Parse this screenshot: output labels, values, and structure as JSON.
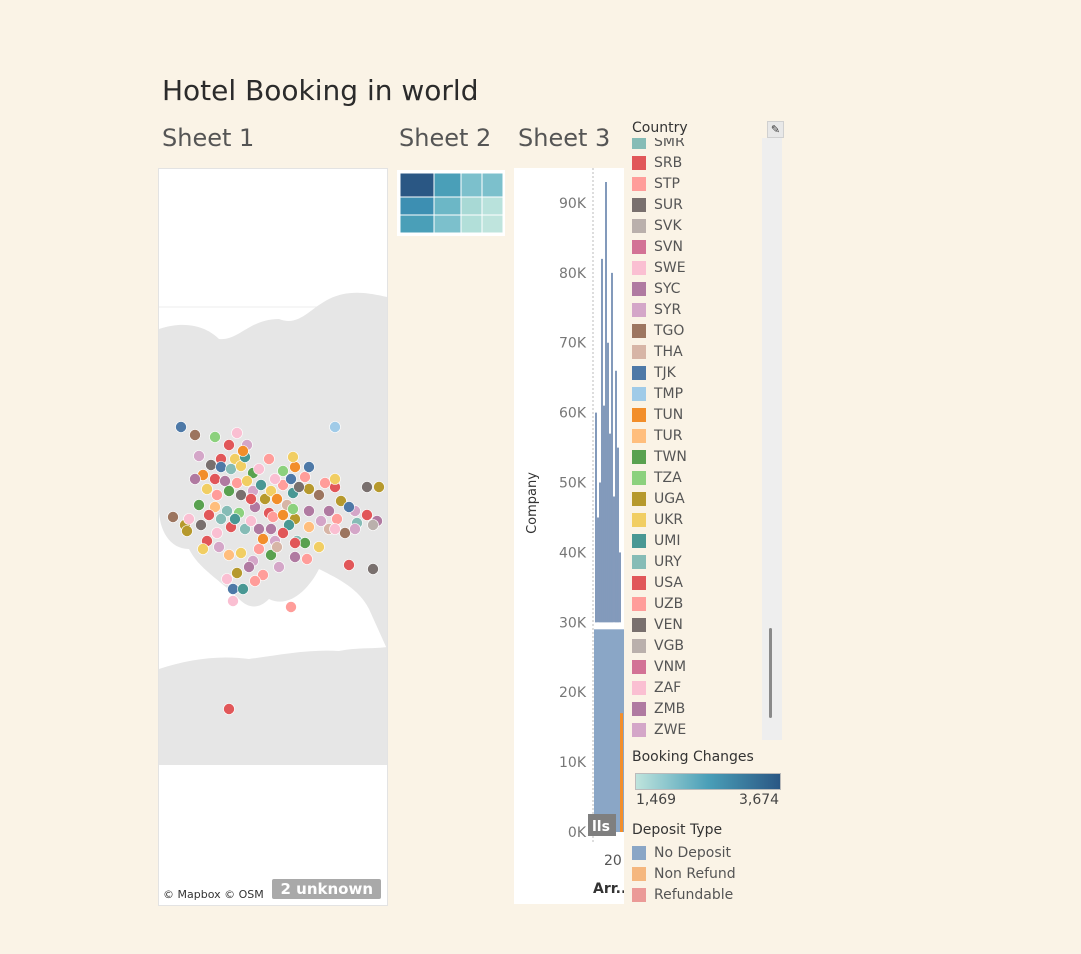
{
  "dashboard": {
    "title": "Hotel Booking in world"
  },
  "sheets": [
    {
      "title": "Sheet 1"
    },
    {
      "title": "Sheet 2"
    },
    {
      "title": "Sheet 3"
    }
  ],
  "map": {
    "attribution": "© Mapbox © OSM",
    "unknown_badge": "2 unknown",
    "land_color": "#e8e8e8",
    "points": [
      [
        22,
        258,
        "#4e79a7"
      ],
      [
        36,
        266,
        "#9c755f"
      ],
      [
        56,
        268,
        "#8cd17d"
      ],
      [
        78,
        264,
        "#fabfd2"
      ],
      [
        70,
        276,
        "#e15759"
      ],
      [
        76,
        290,
        "#f1ce63"
      ],
      [
        62,
        290,
        "#e15759"
      ],
      [
        40,
        287,
        "#d4a6c8"
      ],
      [
        52,
        296,
        "#79706e"
      ],
      [
        62,
        298,
        "#4e79a7"
      ],
      [
        72,
        300,
        "#86bcb6"
      ],
      [
        82,
        297,
        "#f1ce63"
      ],
      [
        86,
        288,
        "#499894"
      ],
      [
        94,
        304,
        "#59a14f"
      ],
      [
        44,
        306,
        "#f28e2b"
      ],
      [
        56,
        310,
        "#e15759"
      ],
      [
        66,
        312,
        "#b07aa1"
      ],
      [
        78,
        314,
        "#ff9d9a"
      ],
      [
        88,
        312,
        "#f1ce63"
      ],
      [
        100,
        300,
        "#fabfd2"
      ],
      [
        36,
        310,
        "#b07aa1"
      ],
      [
        48,
        320,
        "#f1ce63"
      ],
      [
        58,
        326,
        "#ff9d9a"
      ],
      [
        70,
        322,
        "#59a14f"
      ],
      [
        82,
        326,
        "#79706e"
      ],
      [
        94,
        322,
        "#d4a6c8"
      ],
      [
        106,
        330,
        "#b6992d"
      ],
      [
        40,
        336,
        "#59a14f"
      ],
      [
        56,
        338,
        "#ffbe7d"
      ],
      [
        68,
        342,
        "#86bcb6"
      ],
      [
        80,
        344,
        "#8cd17d"
      ],
      [
        96,
        338,
        "#b07aa1"
      ],
      [
        112,
        322,
        "#f1ce63"
      ],
      [
        124,
        316,
        "#ff9d9a"
      ],
      [
        134,
        324,
        "#499894"
      ],
      [
        132,
        310,
        "#4e79a7"
      ],
      [
        118,
        330,
        "#f28e2b"
      ],
      [
        110,
        344,
        "#e15759"
      ],
      [
        128,
        336,
        "#d7b5a6"
      ],
      [
        146,
        308,
        "#ff9d9a"
      ],
      [
        150,
        320,
        "#b6992d"
      ],
      [
        136,
        350,
        "#b6992d"
      ],
      [
        160,
        326,
        "#9c755f"
      ],
      [
        182,
        332,
        "#b6992d"
      ],
      [
        170,
        342,
        "#b07aa1"
      ],
      [
        196,
        342,
        "#d4a6c8"
      ],
      [
        208,
        346,
        "#e15759"
      ],
      [
        218,
        352,
        "#b07aa1"
      ],
      [
        150,
        342,
        "#b07aa1"
      ],
      [
        162,
        352,
        "#d4a6c8"
      ],
      [
        170,
        360,
        "#d7b5a6"
      ],
      [
        178,
        350,
        "#ff9d9a"
      ],
      [
        186,
        364,
        "#9c755f"
      ],
      [
        198,
        354,
        "#86bcb6"
      ],
      [
        190,
        338,
        "#4e79a7"
      ],
      [
        176,
        318,
        "#e15759"
      ],
      [
        166,
        314,
        "#ff9d9a"
      ],
      [
        136,
        298,
        "#f28e2b"
      ],
      [
        134,
        340,
        "#8cd17d"
      ],
      [
        130,
        356,
        "#499894"
      ],
      [
        114,
        348,
        "#ff9d9a"
      ],
      [
        100,
        360,
        "#b07aa1"
      ],
      [
        86,
        360,
        "#86bcb6"
      ],
      [
        72,
        358,
        "#e15759"
      ],
      [
        58,
        364,
        "#fabfd2"
      ],
      [
        48,
        372,
        "#e15759"
      ],
      [
        60,
        378,
        "#d4a6c8"
      ],
      [
        70,
        386,
        "#ffbe7d"
      ],
      [
        82,
        384,
        "#f1ce63"
      ],
      [
        94,
        392,
        "#d4a6c8"
      ],
      [
        100,
        380,
        "#ff9d9a"
      ],
      [
        112,
        386,
        "#59a14f"
      ],
      [
        120,
        398,
        "#d4a6c8"
      ],
      [
        104,
        406,
        "#ff9d9a"
      ],
      [
        90,
        398,
        "#b07aa1"
      ],
      [
        78,
        404,
        "#b6992d"
      ],
      [
        68,
        410,
        "#fabfd2"
      ],
      [
        74,
        420,
        "#4e79a7"
      ],
      [
        84,
        420,
        "#499894"
      ],
      [
        96,
        412,
        "#ff9d9a"
      ],
      [
        112,
        360,
        "#b07aa1"
      ],
      [
        124,
        364,
        "#e15759"
      ],
      [
        138,
        372,
        "#86bcb6"
      ],
      [
        146,
        374,
        "#59a14f"
      ],
      [
        116,
        372,
        "#d4a6c8"
      ],
      [
        26,
        356,
        "#b6992d"
      ],
      [
        30,
        350,
        "#fabfd2"
      ],
      [
        28,
        362,
        "#b6992d"
      ],
      [
        42,
        356,
        "#79706e"
      ],
      [
        44,
        380,
        "#f1ce63"
      ],
      [
        14,
        348,
        "#9c755f"
      ],
      [
        50,
        346,
        "#e15759"
      ],
      [
        62,
        350,
        "#86bcb6"
      ],
      [
        76,
        350,
        "#499894"
      ],
      [
        92,
        352,
        "#fabfd2"
      ],
      [
        148,
        390,
        "#ff9d9a"
      ],
      [
        136,
        388,
        "#b07aa1"
      ],
      [
        104,
        370,
        "#f28e2b"
      ],
      [
        118,
        378,
        "#d7b5a6"
      ],
      [
        160,
        378,
        "#f1ce63"
      ],
      [
        176,
        360,
        "#fabfd2"
      ],
      [
        196,
        360,
        "#d4a6c8"
      ],
      [
        176,
        310,
        "#f1ce63"
      ],
      [
        150,
        298,
        "#4e79a7"
      ],
      [
        134,
        288,
        "#f1ce63"
      ],
      [
        176,
        258,
        "#a0cbe8"
      ],
      [
        208,
        318,
        "#79706e"
      ],
      [
        220,
        318,
        "#b6992d"
      ],
      [
        190,
        396,
        "#e15759"
      ],
      [
        136,
        374,
        "#e15759"
      ],
      [
        74,
        432,
        "#fabfd2"
      ],
      [
        132,
        438,
        "#ff9d9a"
      ],
      [
        214,
        400,
        "#79706e"
      ],
      [
        214,
        356,
        "#bab0ac"
      ],
      [
        70,
        540,
        "#e15759"
      ],
      [
        88,
        276,
        "#d4a6c8"
      ],
      [
        84,
        282,
        "#f28e2b"
      ],
      [
        110,
        290,
        "#ff9d9a"
      ],
      [
        116,
        310,
        "#fabfd2"
      ],
      [
        124,
        302,
        "#8cd17d"
      ],
      [
        102,
        316,
        "#499894"
      ],
      [
        92,
        330,
        "#e15759"
      ],
      [
        140,
        318,
        "#79706e"
      ],
      [
        124,
        346,
        "#f28e2b"
      ],
      [
        150,
        358,
        "#ffbe7d"
      ]
    ]
  },
  "heatmap": {
    "colors": [
      [
        "#2a5784",
        "#4a9fb8",
        "#7cc0cc",
        "#7cc0cc"
      ],
      [
        "#3d8fb2",
        "#6cb7c6",
        "#a8d9d5",
        "#b9e2dc"
      ],
      [
        "#4a9fb8",
        "#7cc0cc",
        "#b2dfd9",
        "#bfe4dd"
      ]
    ]
  },
  "chart3": {
    "y_axis_label": "Company",
    "x_axis_label": "Arr..",
    "x_tick": "20",
    "overlay_text": "lls",
    "y_ticks": [
      "0K",
      "10K",
      "20K",
      "30K",
      "40K",
      "50K",
      "60K",
      "70K",
      "80K",
      "90K"
    ],
    "ylim": [
      0,
      95000
    ],
    "bar_color": "#8aa6c6",
    "line_color": "#4e6f9e",
    "orange_color": "#f28e2b"
  },
  "legend_country": {
    "title": "Country",
    "edit_icon": "pen-icon",
    "items": [
      {
        "label": "SMR",
        "color": "#86bcb6"
      },
      {
        "label": "SRB",
        "color": "#e15759"
      },
      {
        "label": "STP",
        "color": "#ff9d9a"
      },
      {
        "label": "SUR",
        "color": "#79706e"
      },
      {
        "label": "SVK",
        "color": "#bab0ac"
      },
      {
        "label": "SVN",
        "color": "#d37295"
      },
      {
        "label": "SWE",
        "color": "#fabfd2"
      },
      {
        "label": "SYC",
        "color": "#b07aa1"
      },
      {
        "label": "SYR",
        "color": "#d4a6c8"
      },
      {
        "label": "TGO",
        "color": "#9d7660"
      },
      {
        "label": "THA",
        "color": "#d7b5a6"
      },
      {
        "label": "TJK",
        "color": "#4e79a7"
      },
      {
        "label": "TMP",
        "color": "#a0cbe8"
      },
      {
        "label": "TUN",
        "color": "#f28e2b"
      },
      {
        "label": "TUR",
        "color": "#ffbe7d"
      },
      {
        "label": "TWN",
        "color": "#59a14f"
      },
      {
        "label": "TZA",
        "color": "#8cd17d"
      },
      {
        "label": "UGA",
        "color": "#b6992d"
      },
      {
        "label": "UKR",
        "color": "#f1ce63"
      },
      {
        "label": "UMI",
        "color": "#499894"
      },
      {
        "label": "URY",
        "color": "#86bcb6"
      },
      {
        "label": "USA",
        "color": "#e15759"
      },
      {
        "label": "UZB",
        "color": "#ff9d9a"
      },
      {
        "label": "VEN",
        "color": "#79706e"
      },
      {
        "label": "VGB",
        "color": "#bab0ac"
      },
      {
        "label": "VNM",
        "color": "#d37295"
      },
      {
        "label": "ZAF",
        "color": "#fabfd2"
      },
      {
        "label": "ZMB",
        "color": "#b07aa1"
      },
      {
        "label": "ZWE",
        "color": "#d4a6c8"
      }
    ]
  },
  "legend_booking": {
    "title": "Booking Changes",
    "min": "1,469",
    "max": "3,674"
  },
  "legend_deposit": {
    "title": "Deposit Type",
    "items": [
      {
        "label": "No Deposit",
        "color": "#8aa6c6"
      },
      {
        "label": "Non Refund",
        "color": "#f5b77f"
      },
      {
        "label": "Refundable",
        "color": "#eb9a97"
      }
    ]
  }
}
